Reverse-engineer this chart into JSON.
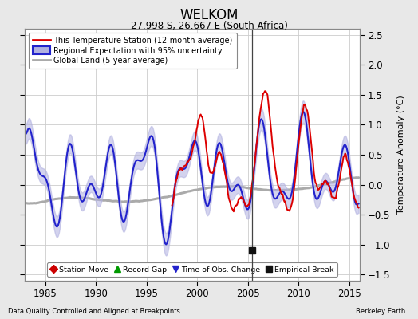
{
  "title": "WELKOM",
  "subtitle": "27.998 S, 26.667 E (South Africa)",
  "xlabel_left": "Data Quality Controlled and Aligned at Breakpoints",
  "xlabel_right": "Berkeley Earth",
  "ylabel": "Temperature Anomaly (°C)",
  "xlim": [
    1983.0,
    2016.0
  ],
  "ylim": [
    -1.6,
    2.6
  ],
  "yticks": [
    -1.5,
    -1.0,
    -0.5,
    0.0,
    0.5,
    1.0,
    1.5,
    2.0,
    2.5
  ],
  "xticks": [
    1985,
    1990,
    1995,
    2000,
    2005,
    2010,
    2015
  ],
  "bg_color": "#e8e8e8",
  "plot_bg_color": "#ffffff",
  "grid_color": "#cccccc",
  "station_color": "#dd0000",
  "regional_color": "#2222cc",
  "regional_fill_color": "#b0b0e0",
  "global_color": "#aaaaaa",
  "empirical_break_year": 2005.4,
  "empirical_break_value": -1.1,
  "legend_labels": [
    "This Temperature Station (12-month average)",
    "Regional Expectation with 95% uncertainty",
    "Global Land (5-year average)"
  ]
}
